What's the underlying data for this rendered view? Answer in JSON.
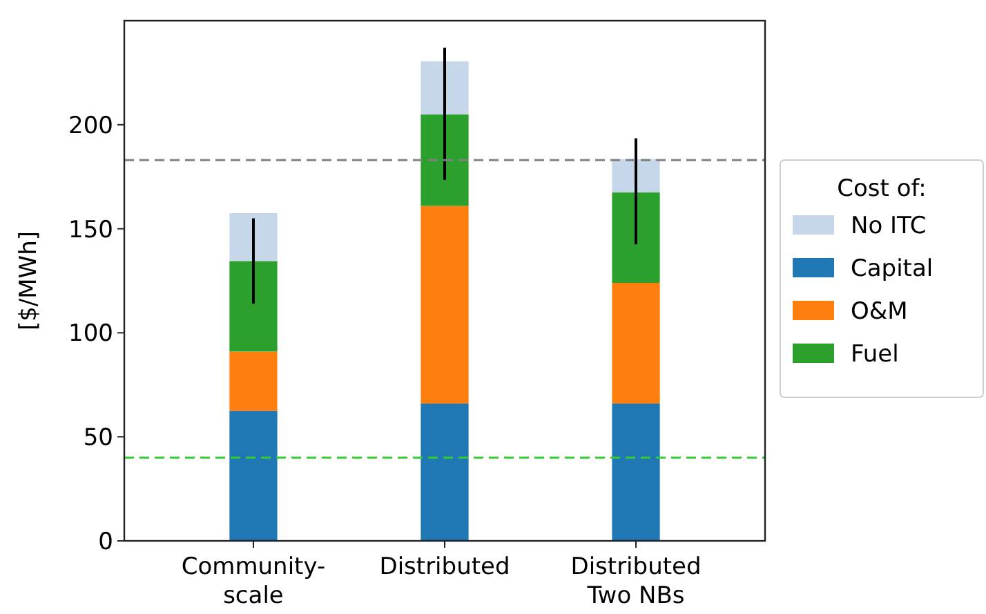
{
  "chart_data": {
    "type": "bar",
    "stacked": true,
    "ylabel": "[$/MWh]",
    "legend_title": "Cost of:",
    "legend": "right",
    "categories": [
      "Community-\nscale",
      "Distributed",
      "Distributed\nTwo NBs"
    ],
    "ylim": [
      0,
      250
    ],
    "yticks": [
      0,
      50,
      100,
      150,
      200
    ],
    "grid": false,
    "series": [
      {
        "name": "Capital",
        "color": "#1f77b4",
        "values": [
          62.5,
          66,
          66
        ]
      },
      {
        "name": "O&M",
        "color": "#ff7f0e",
        "values": [
          28.5,
          95,
          58
        ]
      },
      {
        "name": "Fuel",
        "color": "#2ca02c",
        "values": [
          43.5,
          44,
          43.5
        ],
        "errors": [
          [
            114,
            155
          ],
          [
            173.5,
            237
          ],
          [
            142.5,
            193.5
          ]
        ]
      },
      {
        "name": "No ITC",
        "color": "#c5d7e8",
        "values": [
          23,
          25.5,
          16
        ]
      }
    ],
    "ref_lines": [
      {
        "axis": "y",
        "value": 183,
        "color": "#808080",
        "line_style": "dashed"
      },
      {
        "axis": "y",
        "value": 40,
        "color": "#33cc33",
        "line_style": "dashed"
      }
    ]
  }
}
